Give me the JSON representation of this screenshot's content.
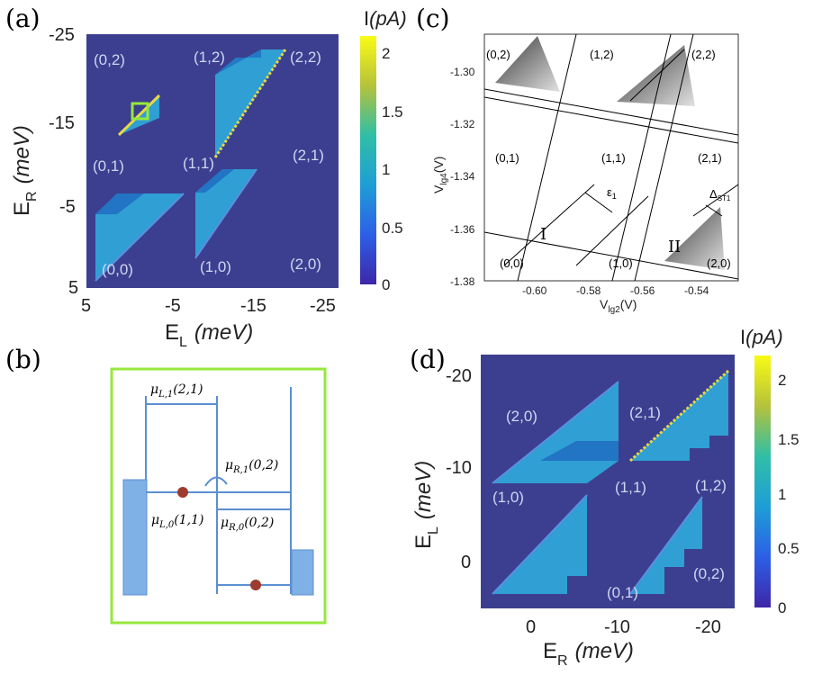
{
  "panels": {
    "a": {
      "label": "(a)",
      "ylabel_main": "E",
      "ylabel_sub": "R",
      "ylabel_unit": "(meV)",
      "xlabel_main": "E",
      "xlabel_sub": "L",
      "xlabel_unit": "(meV)",
      "x_ticks": [
        "5",
        "-5",
        "-15",
        "-25"
      ],
      "y_ticks": [
        "-25",
        "-15",
        "-5",
        "5"
      ],
      "regions": [
        "(0,2)",
        "(1,2)",
        "(2,2)",
        "(0,1)",
        "(1,1)",
        "(2,1)",
        "(0,0)",
        "(1,0)",
        "(2,0)"
      ],
      "colorbar": {
        "title_main": "I",
        "title_unit": "(pA)",
        "ticks": [
          "2",
          "1.5",
          "1",
          "0.5",
          "0"
        ]
      }
    },
    "b": {
      "label": "(b)",
      "levels": {
        "mu_L1": {
          "sym": "μ",
          "sub": "L,1",
          "arg": "(2,1)"
        },
        "mu_R1": {
          "sym": "μ",
          "sub": "R,1",
          "arg": "(0,2)"
        },
        "mu_L0": {
          "sym": "μ",
          "sub": "L,0",
          "arg": "(1,1)"
        },
        "mu_R0": {
          "sym": "μ",
          "sub": "R,0",
          "arg": "(0,2)"
        }
      }
    },
    "c": {
      "label": "(c)",
      "ylabel": "V",
      "ylabel_sub": "lg4",
      "ylabel_unit": "(V)",
      "xlabel": "V",
      "xlabel_sub": "lg2",
      "xlabel_unit": "(V)",
      "x_ticks": [
        "-0.60",
        "-0.58",
        "-0.56",
        "-0.54"
      ],
      "y_ticks": [
        "-1.30",
        "-1.32",
        "-1.34",
        "-1.36",
        "-1.38"
      ],
      "regions": [
        "(0,2)",
        "(1,2)",
        "(2,2)",
        "(0,1)",
        "(1,1)",
        "(2,1)",
        "(0,0)",
        "(1,0)",
        "(2,0)"
      ],
      "annotations": {
        "roman1": "I",
        "roman2": "II",
        "eps": "ε",
        "eps_sub": "1",
        "delta": "Δ",
        "delta_sub": "ST1"
      }
    },
    "d": {
      "label": "(d)",
      "ylabel_main": "E",
      "ylabel_sub": "L",
      "ylabel_unit": "(meV)",
      "xlabel_main": "E",
      "xlabel_sub": "R",
      "xlabel_unit": "(meV)",
      "x_ticks": [
        "0",
        "-10",
        "-20"
      ],
      "y_ticks": [
        "-20",
        "-10",
        "0"
      ],
      "regions": [
        "(2,0)",
        "(2,1)",
        "(1,0)",
        "(1,1)",
        "(1,2)",
        "(0,1)",
        "(0,2)"
      ],
      "colorbar": {
        "title_main": "I",
        "title_unit": "(pA)",
        "ticks": [
          "2",
          "1.5",
          "1",
          "0.5",
          "0"
        ]
      }
    }
  },
  "colors": {
    "background_map": "#3c3f8f",
    "triangle_fill": "#2f9fd4",
    "triangle_edge": "#f0e14a",
    "green_box": "#96e83c",
    "wire": "#5b8fd0",
    "dot": "#9d3b2e"
  },
  "chart_data": [
    {
      "type": "heatmap",
      "title": "(a)",
      "xlabel": "E_L (meV)",
      "ylabel": "E_R (meV)",
      "xlim": [
        5,
        -25
      ],
      "ylim": [
        5,
        -25
      ],
      "colorbar": {
        "label": "I(pA)",
        "range": [
          0,
          2.2
        ],
        "ticks": [
          0,
          0.5,
          1,
          1.5,
          2
        ]
      },
      "regions": [
        "(0,0)",
        "(1,0)",
        "(2,0)",
        "(0,1)",
        "(1,1)",
        "(2,1)",
        "(0,2)",
        "(1,2)",
        "(2,2)"
      ]
    },
    {
      "type": "heatmap",
      "title": "(d)",
      "xlabel": "E_R (meV)",
      "ylabel": "E_L (meV)",
      "xlim": [
        5,
        -22
      ],
      "ylim": [
        5,
        -23
      ],
      "colorbar": {
        "label": "I(pA)",
        "range": [
          0,
          2.2
        ],
        "ticks": [
          0,
          0.5,
          1,
          1.5,
          2
        ]
      },
      "regions": [
        "(2,0)",
        "(2,1)",
        "(1,0)",
        "(1,1)",
        "(1,2)",
        "(0,1)",
        "(0,2)"
      ]
    },
    {
      "type": "heatmap",
      "title": "(c)",
      "xlabel": "V_lg2 (V)",
      "ylabel": "V_lg4 (V)",
      "xlim": [
        -0.615,
        -0.525
      ],
      "ylim": [
        -1.382,
        -1.285
      ],
      "xticks": [
        -0.6,
        -0.58,
        -0.56,
        -0.54
      ],
      "yticks": [
        -1.3,
        -1.32,
        -1.34,
        -1.36,
        -1.38
      ]
    }
  ]
}
